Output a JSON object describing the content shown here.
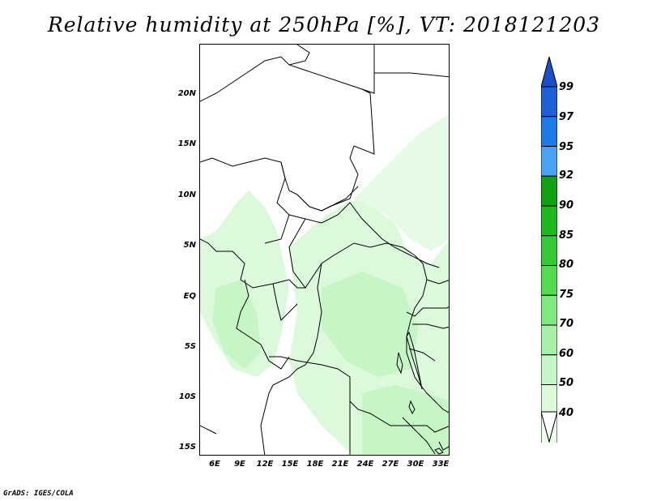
{
  "title": "Relative humidity at 250hPa [%], VT: 2018121203",
  "footer": "GrADS: IGES/COLA",
  "map": {
    "lon_range": [
      3,
      34
    ],
    "lat_range": [
      -16,
      24
    ],
    "y_ticks": [
      "20N",
      "15N",
      "10N",
      "5N",
      "EQ",
      "5S",
      "10S",
      "15S"
    ],
    "y_tick_values": [
      20,
      15,
      10,
      5,
      0,
      -5,
      -10,
      -15
    ],
    "x_ticks": [
      "6E",
      "9E",
      "12E",
      "15E",
      "18E",
      "21E",
      "24E",
      "27E",
      "30E",
      "33E"
    ],
    "x_tick_values": [
      6,
      9,
      12,
      15,
      18,
      21,
      24,
      27,
      30,
      33
    ]
  },
  "colorbar": {
    "labels": [
      "99",
      "97",
      "95",
      "92",
      "90",
      "85",
      "80",
      "75",
      "70",
      "60",
      "50",
      "40"
    ],
    "colors": [
      "#1f5fd8",
      "#1f7ae8",
      "#4aa3f0",
      "#13a013",
      "#1fb81f",
      "#35c935",
      "#52dc52",
      "#7fe87f",
      "#a8f0a8",
      "#c6f5c6",
      "#dcf9dc",
      "#eefcee"
    ],
    "top_triangle_color": "#1a4fc8",
    "bottom_triangle_color": "#ffffff"
  }
}
